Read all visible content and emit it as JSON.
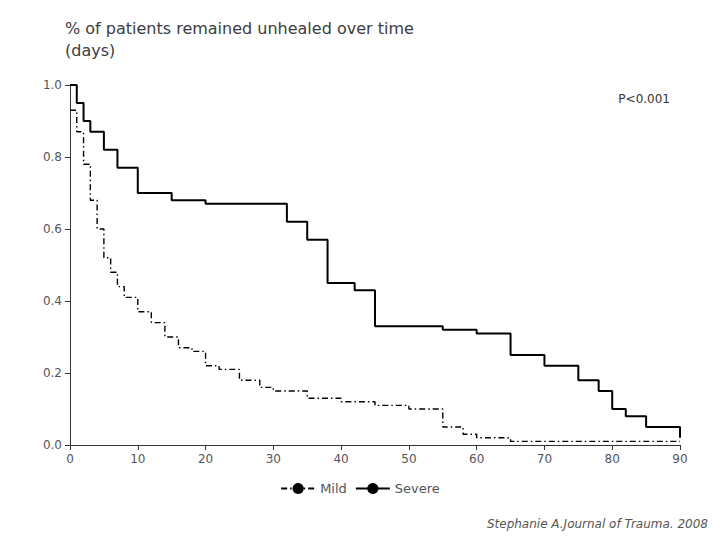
{
  "chart_data": {
    "type": "step",
    "title": "% of patients remained unhealed over time\n(days)",
    "annotations": [
      "P<0.001",
      "Stephanie A.Journal of Trauma. 2008"
    ],
    "xlim": [
      0,
      90
    ],
    "ylim": [
      0.0,
      1.0
    ],
    "xticks": [
      0,
      10,
      20,
      30,
      40,
      50,
      60,
      70,
      80,
      90
    ],
    "yticks": [
      {
        "value": 0.0,
        "label": "0.0"
      },
      0.2,
      0.4,
      0.6,
      0.8,
      {
        "value": 1.0,
        "label": "1.0"
      }
    ],
    "grid": false,
    "legend": "bottom",
    "series": [
      {
        "name": "Mild",
        "color": "#000000",
        "line_style": "dashdot",
        "x": [
          0,
          1,
          2,
          3,
          4,
          5,
          6,
          7,
          8,
          10,
          12,
          14,
          16,
          18,
          20,
          22,
          25,
          28,
          30,
          35,
          40,
          45,
          50,
          55,
          58,
          60,
          65,
          70,
          75,
          80,
          85,
          90
        ],
        "values": [
          0.93,
          0.87,
          0.78,
          0.68,
          0.6,
          0.52,
          0.48,
          0.44,
          0.41,
          0.37,
          0.34,
          0.3,
          0.27,
          0.26,
          0.22,
          0.21,
          0.18,
          0.16,
          0.15,
          0.13,
          0.12,
          0.11,
          0.1,
          0.05,
          0.03,
          0.02,
          0.01,
          0.01,
          0.01,
          0.01,
          0.01,
          0.01
        ]
      },
      {
        "name": "Severe",
        "color": "#000000",
        "line_style": "solid",
        "x": [
          0,
          1,
          2,
          3,
          5,
          7,
          10,
          15,
          20,
          30,
          32,
          35,
          38,
          42,
          45,
          50,
          55,
          60,
          65,
          70,
          75,
          78,
          80,
          82,
          85,
          90
        ],
        "values": [
          1.0,
          0.95,
          0.9,
          0.87,
          0.82,
          0.77,
          0.7,
          0.68,
          0.67,
          0.67,
          0.62,
          0.57,
          0.45,
          0.43,
          0.33,
          0.33,
          0.32,
          0.31,
          0.25,
          0.22,
          0.18,
          0.15,
          0.1,
          0.08,
          0.05,
          0.02
        ]
      }
    ]
  }
}
